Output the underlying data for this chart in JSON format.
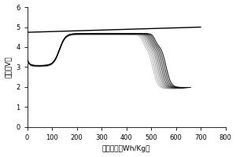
{
  "xlabel": "能量密度（Wh/Kg）",
  "ylabel": "电压（V）",
  "xlim": [
    0,
    800
  ],
  "ylim": [
    0,
    6
  ],
  "xticks": [
    0,
    100,
    200,
    300,
    400,
    500,
    600,
    700,
    800
  ],
  "yticks": [
    0,
    1,
    2,
    3,
    4,
    5,
    6
  ],
  "background_color": "#ffffff",
  "num_cycles": 9,
  "straight_line": {
    "x0": 0,
    "y0": 4.74,
    "x1": 700,
    "y1": 5.0
  },
  "curve_colors": [
    "#000000",
    "#111111",
    "#222222",
    "#333333",
    "#555555",
    "#777777",
    "#999999",
    "#aaaaaa",
    "#bbbbbb"
  ]
}
